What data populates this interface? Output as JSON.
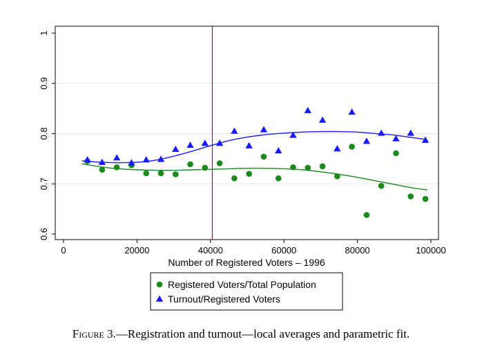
{
  "caption": {
    "label": "Figure 3.",
    "text": "—Registration and turnout—local averages and parametric fit."
  },
  "chart_data": {
    "type": "scatter",
    "xlabel": "Number of Registered Voters – 1996",
    "ylabel": "",
    "xlim": [
      0,
      100000
    ],
    "ylim": [
      0.6,
      1.0
    ],
    "x_ticks": [
      0,
      20000,
      40000,
      60000,
      80000,
      100000
    ],
    "x_tick_labels": [
      "0",
      "20000",
      "40000",
      "60000",
      "80000",
      "100000"
    ],
    "y_ticks": [
      0.6,
      0.7,
      0.8,
      0.9,
      1.0
    ],
    "y_tick_labels": [
      "0.6",
      "0.7",
      "0.8",
      "0.9",
      "1"
    ],
    "threshold_x": 40500,
    "grid": "horizontal",
    "legend_position": "bottom",
    "series": [
      {
        "name": "Registered Voters/Total Population",
        "color": "#1a8a1a",
        "marker": "circle",
        "x": [
          6500,
          10500,
          14500,
          18500,
          22500,
          26500,
          30500,
          34500,
          38500,
          42500,
          46500,
          50500,
          54500,
          58500,
          62500,
          66500,
          70500,
          74500,
          78500,
          82500,
          86500,
          90500,
          94500,
          98500
        ],
        "y": [
          0.745,
          0.728,
          0.733,
          0.737,
          0.721,
          0.721,
          0.719,
          0.739,
          0.732,
          0.741,
          0.711,
          0.72,
          0.754,
          0.711,
          0.733,
          0.732,
          0.735,
          0.715,
          0.774,
          0.638,
          0.696,
          0.761,
          0.675,
          0.67
        ],
        "fit_x": [
          5000,
          10000,
          15000,
          20000,
          25000,
          30000,
          35000,
          40000,
          45000,
          50000,
          55000,
          60000,
          65000,
          70000,
          75000,
          80000,
          85000,
          90000,
          95000,
          99000
        ],
        "fit_y": [
          0.74,
          0.734,
          0.73,
          0.728,
          0.727,
          0.727,
          0.728,
          0.729,
          0.73,
          0.731,
          0.731,
          0.73,
          0.728,
          0.724,
          0.719,
          0.713,
          0.706,
          0.699,
          0.692,
          0.688
        ]
      },
      {
        "name": "Turnout/Registered Voters",
        "color": "#1a1aff",
        "marker": "triangle",
        "x": [
          6500,
          10500,
          14500,
          18500,
          22500,
          26500,
          30500,
          34500,
          38500,
          42500,
          46500,
          50500,
          54500,
          58500,
          62500,
          66500,
          70500,
          74500,
          78500,
          82500,
          86500,
          90500,
          94500,
          98500
        ],
        "y": [
          0.748,
          0.743,
          0.752,
          0.742,
          0.748,
          0.749,
          0.769,
          0.777,
          0.781,
          0.781,
          0.805,
          0.776,
          0.808,
          0.766,
          0.797,
          0.846,
          0.827,
          0.77,
          0.843,
          0.785,
          0.801,
          0.79,
          0.801,
          0.787
        ],
        "fit_x": [
          5000,
          10000,
          15000,
          20000,
          25000,
          30000,
          35000,
          40000,
          45000,
          50000,
          55000,
          60000,
          65000,
          70000,
          75000,
          80000,
          85000,
          90000,
          95000,
          99000
        ],
        "fit_y": [
          0.746,
          0.743,
          0.742,
          0.743,
          0.747,
          0.755,
          0.765,
          0.776,
          0.786,
          0.793,
          0.798,
          0.801,
          0.803,
          0.804,
          0.804,
          0.803,
          0.8,
          0.797,
          0.792,
          0.788
        ]
      }
    ]
  }
}
